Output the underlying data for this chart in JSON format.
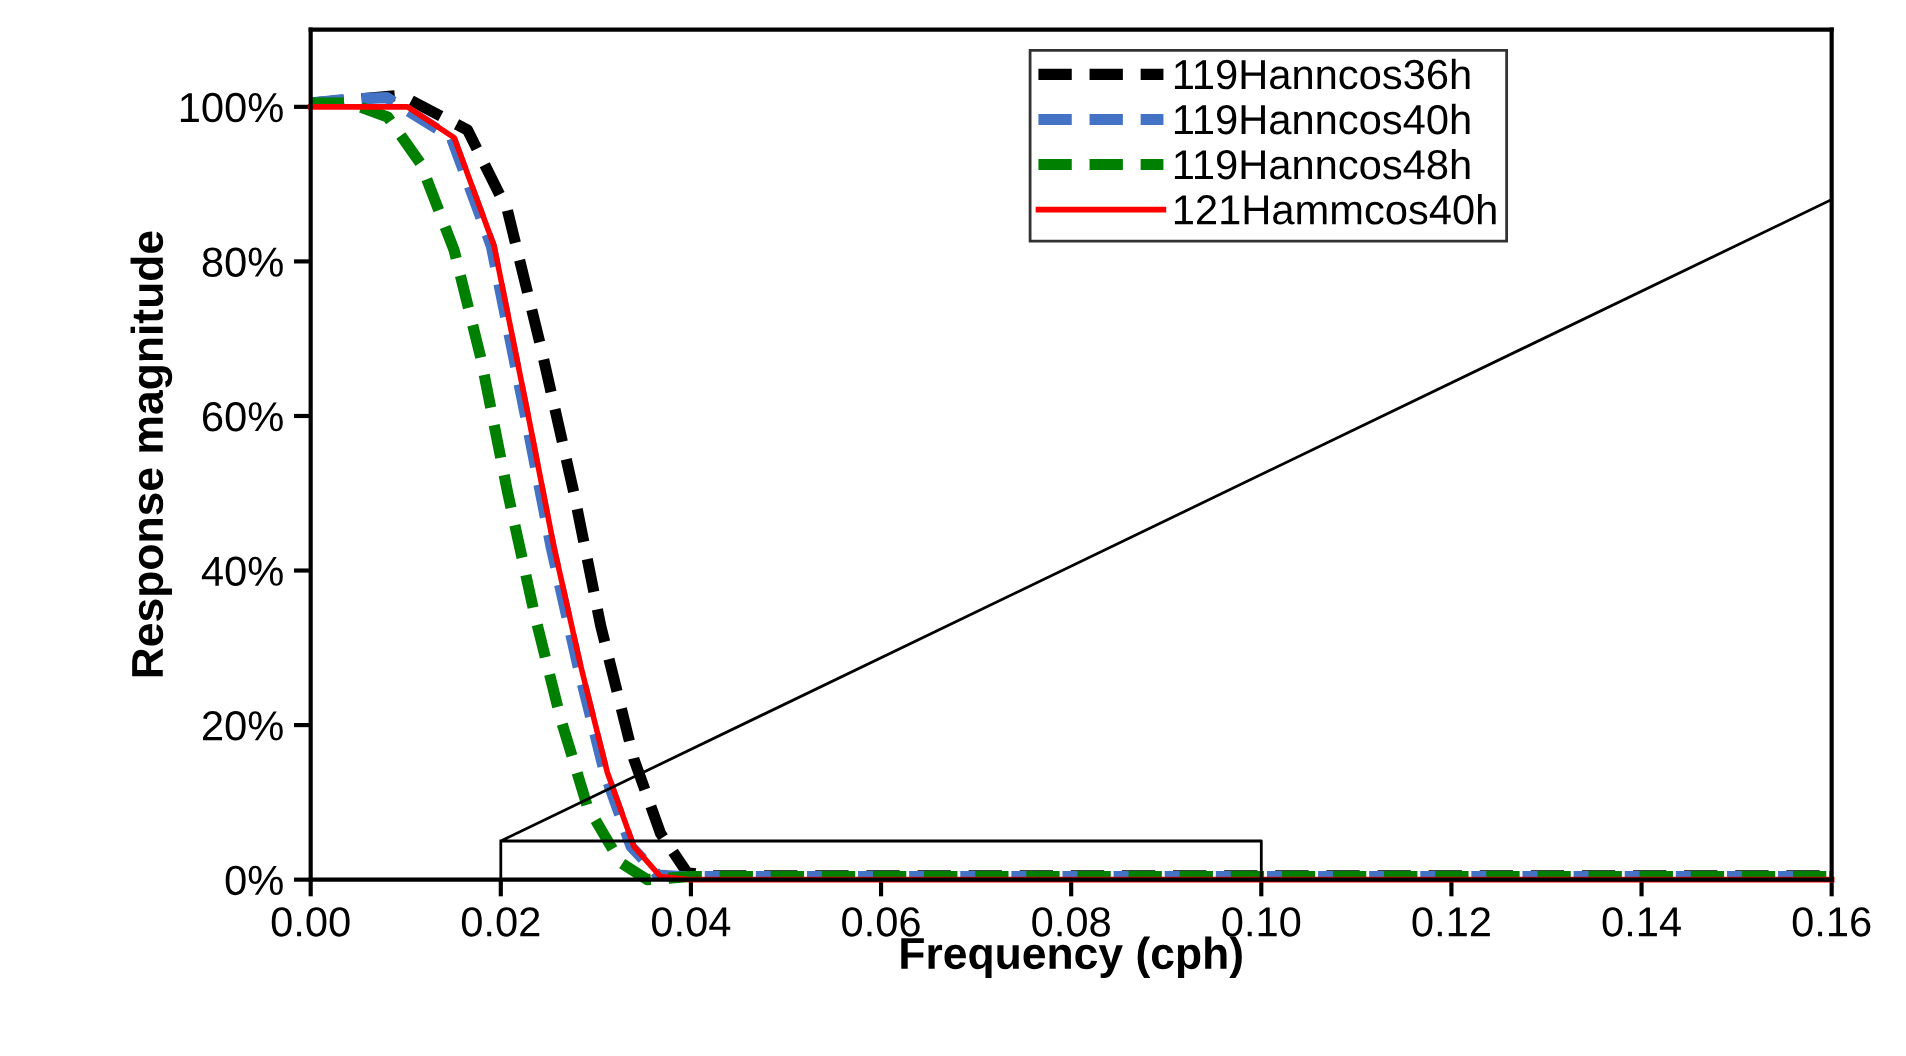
{
  "chart_data": {
    "type": "line",
    "xlabel": "Frequency (cph)",
    "ylabel": "Response magnitude",
    "xlim": [
      0,
      0.16
    ],
    "ylim": [
      0,
      110
    ],
    "xticks": [
      {
        "value": 0,
        "label": "0.00"
      },
      {
        "value": 0.02,
        "label": "0.02"
      },
      {
        "value": 0.04,
        "label": "0.04"
      },
      {
        "value": 0.06,
        "label": "0.06"
      },
      {
        "value": 0.08,
        "label": "0.08"
      },
      {
        "value": 0.1,
        "label": "0.10"
      },
      {
        "value": 0.12,
        "label": "0.12"
      },
      {
        "value": 0.14,
        "label": "0.14"
      },
      {
        "value": 0.16,
        "label": "0.16"
      }
    ],
    "yticks": [
      {
        "value": 0,
        "label": "0%"
      },
      {
        "value": 20,
        "label": "20%"
      },
      {
        "value": 40,
        "label": "40%"
      },
      {
        "value": 60,
        "label": "60%"
      },
      {
        "value": 80,
        "label": "80%"
      },
      {
        "value": 100,
        "label": "100%"
      }
    ],
    "grid": false,
    "legend": "top right",
    "marker": "none",
    "series": [
      {
        "name": "119Hanncos36h",
        "color": "#000000",
        "line_style": "dashed",
        "x": [
          0,
          0.005,
          0.0095,
          0.0165,
          0.0207,
          0.0242,
          0.0277,
          0.0305,
          0.034,
          0.0368,
          0.0396,
          0.042,
          0.06,
          0.1,
          0.16
        ],
        "values": [
          100.5,
          101,
          101.5,
          97,
          86.6,
          69,
          50,
          32.9,
          15.6,
          6,
          0.9,
          0.5,
          0.5,
          0.5,
          0.5
        ]
      },
      {
        "name": "119Hanncos40h",
        "color": "#4472c4",
        "line_style": "dashed",
        "x": [
          0,
          0.004,
          0.008,
          0.0148,
          0.019,
          0.0225,
          0.0253,
          0.0281,
          0.0309,
          0.0337,
          0.0365,
          0.039,
          0.06,
          0.1,
          0.16
        ],
        "values": [
          100.5,
          101,
          101.2,
          96,
          82,
          60.6,
          43,
          27.7,
          13.9,
          4.3,
          0.6,
          0.4,
          0.4,
          0.4,
          0.4
        ]
      },
      {
        "name": "119Hanncos48h",
        "color": "#008000",
        "line_style": "dashed",
        "x": [
          0,
          0.004,
          0.0081,
          0.0116,
          0.0151,
          0.0179,
          0.0207,
          0.0235,
          0.0263,
          0.0291,
          0.0326,
          0.0354,
          0.04,
          0.1,
          0.16
        ],
        "values": [
          100.5,
          100.5,
          98.7,
          92.6,
          81.4,
          67.5,
          50.2,
          34.6,
          20.8,
          9.5,
          2.2,
          0,
          0.4,
          0.4,
          0.4
        ]
      },
      {
        "name": "121Hammcos40h",
        "color": "#ff0000",
        "line_style": "solid",
        "x": [
          0,
          0.0102,
          0.0151,
          0.0193,
          0.0228,
          0.0256,
          0.0284,
          0.0312,
          0.034,
          0.0368,
          0.04,
          0.1,
          0.16
        ],
        "values": [
          100,
          100,
          96,
          82,
          60.6,
          43,
          27.7,
          13.9,
          4.3,
          0.4,
          0,
          0,
          0
        ]
      },
      {
        "color": "#000000",
        "line_style": "solid",
        "x": [
          0.16,
          0.02,
          0.02,
          0.1,
          0.1,
          0.02
        ],
        "values": [
          88,
          5,
          0,
          0,
          5,
          5
        ]
      }
    ]
  }
}
